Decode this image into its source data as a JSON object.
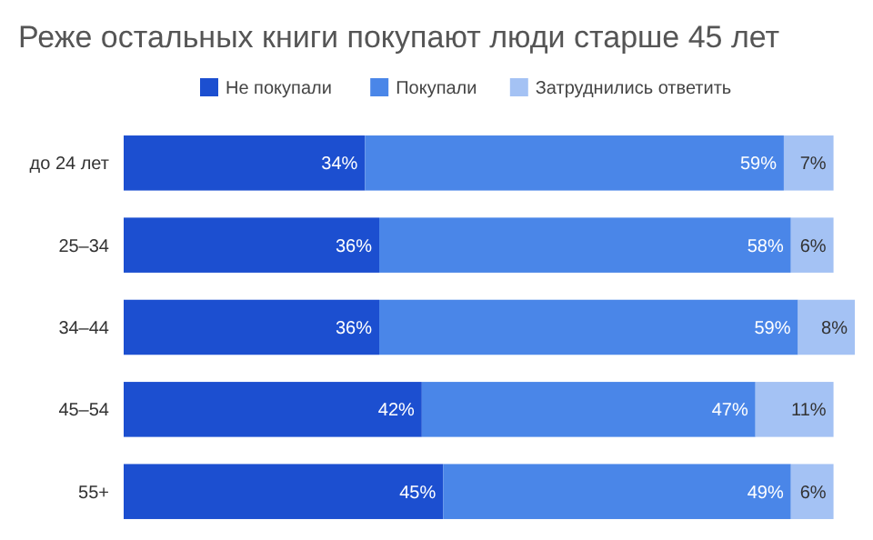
{
  "chart_data": {
    "type": "bar",
    "orientation": "horizontal",
    "stacked": true,
    "title": "Реже остальных книги покупают люди старше 45 лет",
    "categories": [
      "до 24 лет",
      "25–34",
      "34–44",
      "45–54",
      "55+"
    ],
    "legend": "top",
    "series": [
      {
        "name": "Не покупали",
        "color": "#1c4fd0",
        "values": [
          34,
          36,
          36,
          42,
          45
        ],
        "value_labels": [
          "34%",
          "36%",
          "36%",
          "42%",
          "45%"
        ]
      },
      {
        "name": "Покупали",
        "color": "#4a86e8",
        "values": [
          59,
          58,
          59,
          47,
          49
        ],
        "value_labels": [
          "59%",
          "58%",
          "59%",
          "47%",
          "49%"
        ]
      },
      {
        "name": "Затруднились ответить",
        "color": "#a4c2f4",
        "values": [
          7,
          6,
          8,
          11,
          6
        ],
        "value_labels": [
          "7%",
          "6%",
          "8%",
          "11%",
          "6%"
        ]
      }
    ]
  }
}
